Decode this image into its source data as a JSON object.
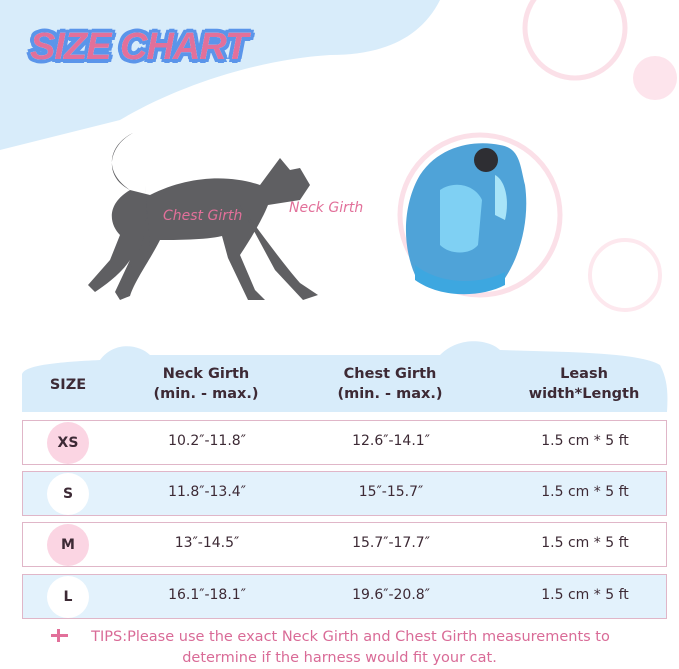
{
  "title": "SIZE CHART",
  "labels": {
    "chest": "Chest Girth",
    "neck": "Neck Girth"
  },
  "table": {
    "headers": [
      [
        "SIZE"
      ],
      [
        "Neck Girth",
        "(min. - max.)"
      ],
      [
        "Chest Girth",
        "(min. - max.)"
      ],
      [
        "Leash",
        "width*Length"
      ]
    ],
    "rows": [
      {
        "size": "XS",
        "neck": "10.2″-11.8″",
        "chest": "12.6″-14.1″",
        "leash": "1.5 cm * 5 ft"
      },
      {
        "size": "S",
        "neck": "11.8″-13.4″",
        "chest": "15″-15.7″",
        "leash": "1.5 cm * 5 ft"
      },
      {
        "size": "M",
        "neck": "13″-14.5″",
        "chest": "15.7″-17.7″",
        "leash": "1.5 cm * 5 ft"
      },
      {
        "size": "L",
        "neck": "16.1″-18.1″",
        "chest": "19.6″-20.8″",
        "leash": "1.5 cm * 5 ft"
      }
    ]
  },
  "tips": {
    "line1": "TIPS:Please use the exact Neck Girth and Chest Girth measurements to",
    "line2": "determine if the harness would fit your cat."
  },
  "colors": {
    "pink": "#e2709a",
    "blue_bg": "#d8ecfa",
    "row_blue": "#e3f2fc",
    "title_outline": "#5b95ea"
  }
}
